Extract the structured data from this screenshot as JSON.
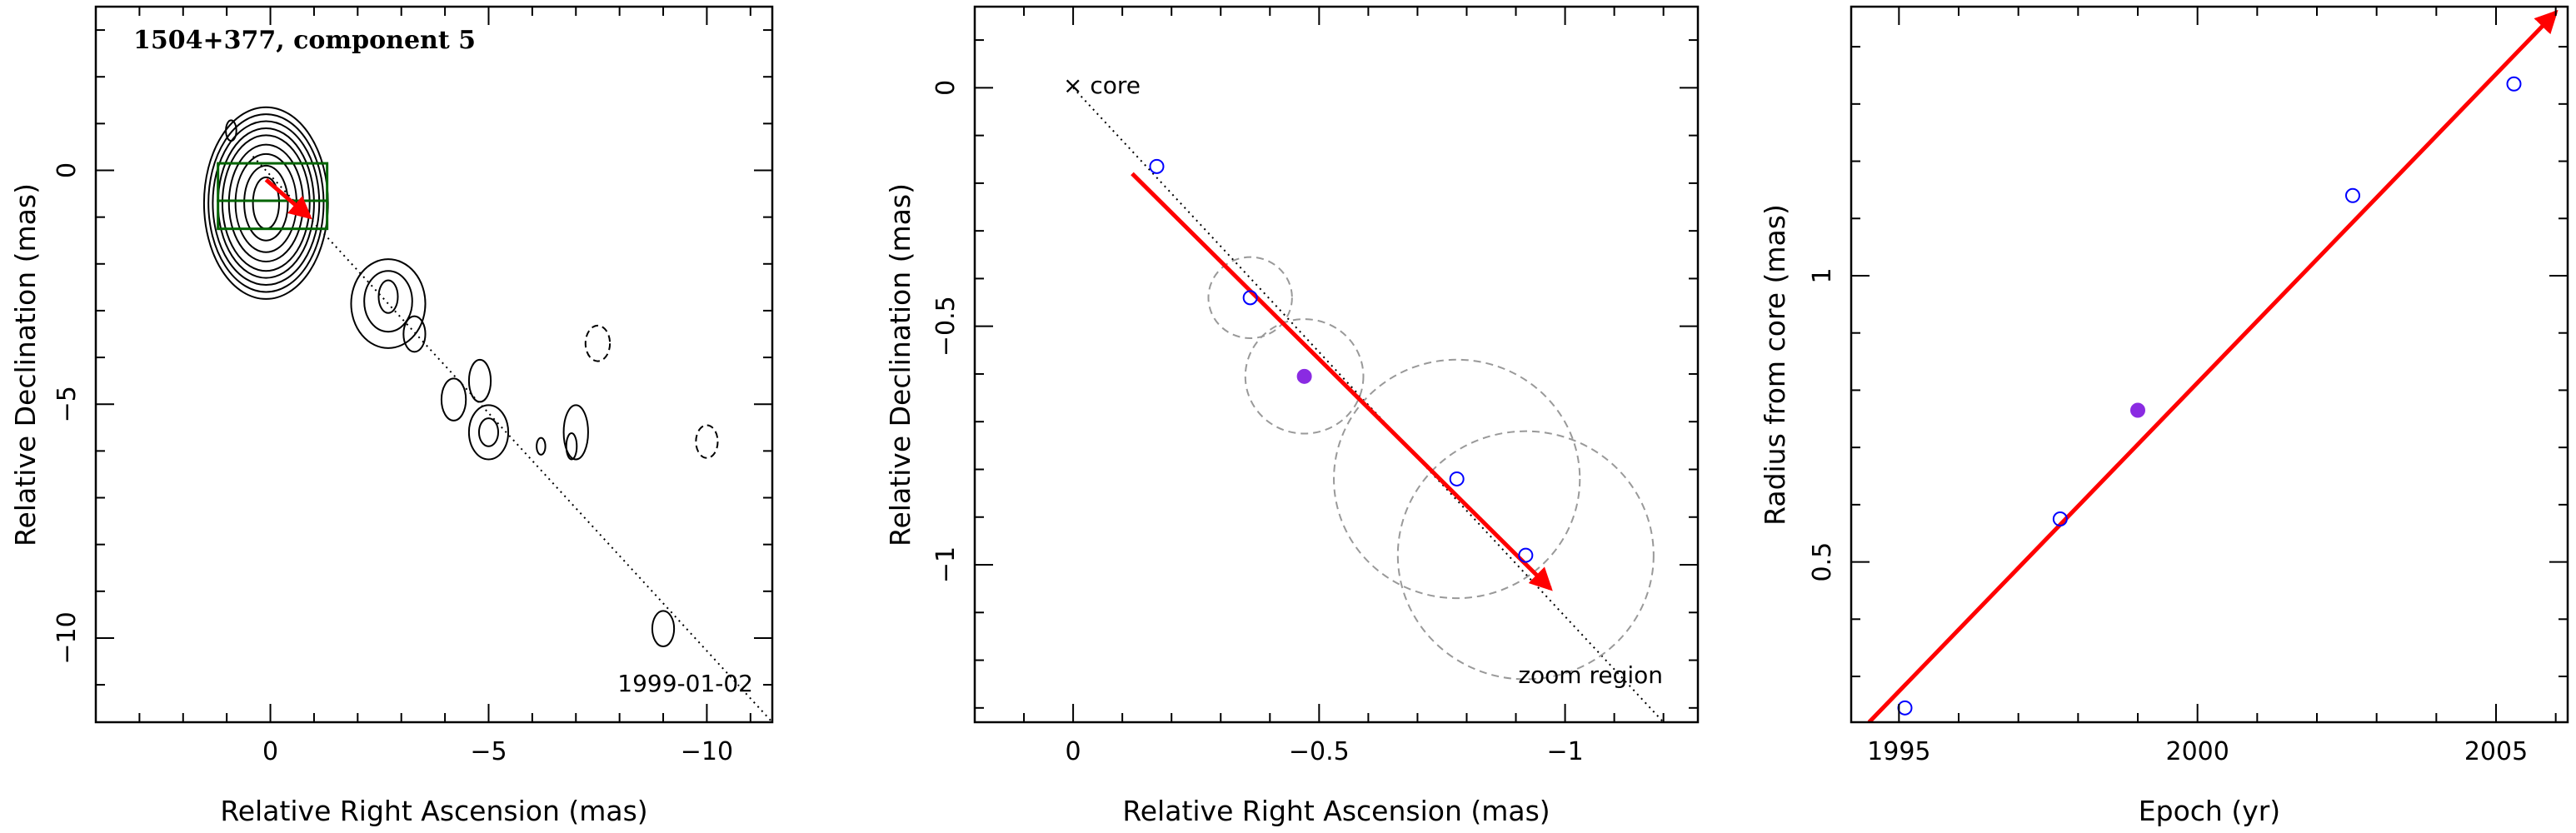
{
  "chart_data": [
    {
      "type": "scatter",
      "title": "1504+377, component 5",
      "xlabel": "Relative Right Ascension (mas)",
      "ylabel": "Relative Declination (mas)",
      "xlim": [
        4,
        -11.5
      ],
      "ylim": [
        -11.8,
        3.5
      ],
      "xticks": [
        0,
        -5,
        -10
      ],
      "xtick_labels": [
        "0",
        "−5",
        "−10"
      ],
      "yticks": [
        0,
        -5,
        -10
      ],
      "ytick_labels": [
        "0",
        "−5",
        "−10"
      ],
      "date_label": "1999-01-02",
      "trajectory_line": {
        "x": [
          0.4,
          -11.5
        ],
        "y": [
          0.3,
          -11.8
        ],
        "style": "dotted"
      },
      "motion_arrow": {
        "from": [
          0.1,
          -0.2
        ],
        "to": [
          -0.9,
          -1.0
        ],
        "color": "#ff0000"
      },
      "zoom_boxes": [
        {
          "x": [
            1.2,
            -1.3
          ],
          "y": [
            0.15,
            -0.65
          ],
          "color": "#006400"
        },
        {
          "x": [
            1.2,
            -1.3
          ],
          "y": [
            -0.65,
            -1.25
          ],
          "color": "#006400"
        }
      ],
      "core_contours": {
        "center": [
          0.1,
          -0.7
        ],
        "radii_x": [
          0.3,
          0.5,
          0.7,
          0.85,
          1.0,
          1.1,
          1.22,
          1.32,
          1.42
        ],
        "radii_y": [
          0.55,
          0.8,
          1.05,
          1.25,
          1.45,
          1.6,
          1.75,
          1.9,
          2.05
        ]
      },
      "contours": [
        {
          "cx": 0.9,
          "cy": 0.85,
          "rx": 0.12,
          "ry": 0.22,
          "dashed": false
        },
        {
          "cx": -2.7,
          "cy": -2.7,
          "rx": 0.22,
          "ry": 0.35,
          "dashed": false
        },
        {
          "cx": -2.7,
          "cy": -2.8,
          "rx": 0.55,
          "ry": 0.65,
          "dashed": false
        },
        {
          "cx": -2.7,
          "cy": -2.85,
          "rx": 0.85,
          "ry": 0.95,
          "dashed": false
        },
        {
          "cx": -3.3,
          "cy": -3.5,
          "rx": 0.25,
          "ry": 0.38,
          "dashed": false
        },
        {
          "cx": -4.2,
          "cy": -4.9,
          "rx": 0.28,
          "ry": 0.45,
          "dashed": false
        },
        {
          "cx": -4.8,
          "cy": -4.5,
          "rx": 0.25,
          "ry": 0.45,
          "dashed": false
        },
        {
          "cx": -5.0,
          "cy": -5.6,
          "rx": 0.22,
          "ry": 0.3,
          "dashed": false
        },
        {
          "cx": -5.0,
          "cy": -5.6,
          "rx": 0.45,
          "ry": 0.58,
          "dashed": false
        },
        {
          "cx": -6.2,
          "cy": -5.9,
          "rx": 0.1,
          "ry": 0.18,
          "dashed": false
        },
        {
          "cx": -6.9,
          "cy": -5.9,
          "rx": 0.12,
          "ry": 0.28,
          "dashed": false
        },
        {
          "cx": -7.0,
          "cy": -5.6,
          "rx": 0.28,
          "ry": 0.58,
          "dashed": false
        },
        {
          "cx": -7.5,
          "cy": -3.7,
          "rx": 0.28,
          "ry": 0.38,
          "dashed": true
        },
        {
          "cx": -10.0,
          "cy": -5.8,
          "rx": 0.25,
          "ry": 0.35,
          "dashed": true
        },
        {
          "cx": -9.0,
          "cy": -9.8,
          "rx": 0.25,
          "ry": 0.38,
          "dashed": false
        }
      ]
    },
    {
      "type": "scatter",
      "xlabel": "Relative Right Ascension (mas)",
      "ylabel": "Relative Declination (mas)",
      "xlim": [
        0.2,
        -1.27
      ],
      "ylim": [
        -1.33,
        0.17
      ],
      "xticks": [
        0,
        -0.5,
        -1
      ],
      "xtick_labels": [
        "0",
        "−0.5",
        "−1"
      ],
      "yticks": [
        0,
        -0.5,
        -1
      ],
      "ytick_labels": [
        "0",
        "−0.5",
        "−1"
      ],
      "core_label": "× core",
      "zoom_label": "zoom region",
      "trajectory_line": {
        "x": [
          0.0,
          -1.2
        ],
        "y": [
          0.0,
          -1.33
        ],
        "style": "dotted"
      },
      "motion_arrow": {
        "from": [
          -0.12,
          -0.18
        ],
        "to": [
          -0.97,
          -1.05
        ],
        "color": "#ff0000"
      },
      "points_open": {
        "x": [
          -0.17,
          -0.36,
          -0.78,
          -0.92
        ],
        "y": [
          -0.165,
          -0.44,
          -0.82,
          -0.98
        ],
        "color": "#0000ff"
      },
      "points_filled": {
        "x": [
          -0.47
        ],
        "y": [
          -0.605
        ],
        "color": "#8a2be2"
      },
      "error_circles": [
        {
          "cx": -0.36,
          "cy": -0.44,
          "r": 0.085
        },
        {
          "cx": -0.47,
          "cy": -0.605,
          "r": 0.12
        },
        {
          "cx": -0.78,
          "cy": -0.82,
          "r": 0.25
        },
        {
          "cx": -0.92,
          "cy": -0.98,
          "r": 0.26
        }
      ]
    },
    {
      "type": "scatter",
      "xlabel": "Epoch (yr)",
      "ylabel": "Radius from core (mas)",
      "xlim": [
        1994.2,
        2006.2
      ],
      "ylim": [
        0.22,
        1.47
      ],
      "xticks": [
        1995,
        2000,
        2005
      ],
      "xtick_labels": [
        "1995",
        "2000",
        "2005"
      ],
      "yticks": [
        0.5,
        1
      ],
      "ytick_labels": [
        "0.5",
        "1"
      ],
      "points_open": {
        "x": [
          1995.1,
          1997.7,
          2002.6,
          2005.3
        ],
        "y": [
          0.245,
          0.575,
          1.14,
          1.335
        ],
        "color": "#0000ff"
      },
      "points_filled": {
        "x": [
          1999.0
        ],
        "y": [
          0.765
        ],
        "color": "#8a2be2"
      },
      "fit_arrow": {
        "from": [
          1994.5,
          0.22
        ],
        "to": [
          2006.0,
          1.46
        ],
        "color": "#ff0000"
      }
    }
  ]
}
